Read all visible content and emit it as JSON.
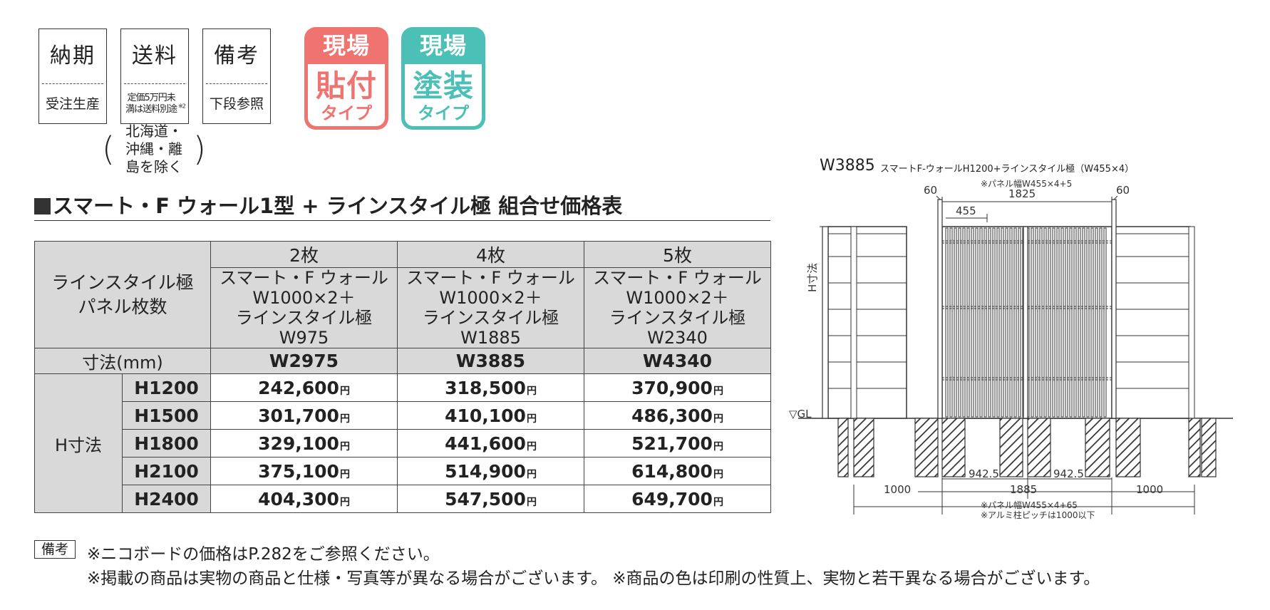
{
  "info_boxes": [
    {
      "title": "納期",
      "value": "受注生産"
    },
    {
      "title": "送料",
      "value": "定価5万円未満は送料別途",
      "sup": "※2"
    },
    {
      "title": "備考",
      "value": "下段参照"
    }
  ],
  "shipping_note": "北海道・沖縄・離島を除く",
  "badges": [
    {
      "top": "現場",
      "main": "貼付",
      "sub": "タイプ",
      "color": "#ef7470"
    },
    {
      "top": "現場",
      "main": "塗装",
      "sub": "タイプ",
      "color": "#4cbfb6"
    }
  ],
  "heading": "スマート・F ウォール1型 + ラインスタイル極 組合せ価格表",
  "table": {
    "corner_label": "ラインスタイル極\nパネル枚数",
    "columns": [
      {
        "count": "2枚",
        "combo_line1": "スマート・F ウォール",
        "combo_line2": "W1000×2＋",
        "combo_line3": "ラインスタイル極  W975",
        "size": "W2975"
      },
      {
        "count": "4枚",
        "combo_line1": "スマート・F ウォール",
        "combo_line2": "W1000×2＋",
        "combo_line3": "ラインスタイル極  W1885",
        "size": "W3885"
      },
      {
        "count": "5枚",
        "combo_line1": "スマート・F ウォール",
        "combo_line2": "W1000×2＋",
        "combo_line3": "ラインスタイル極  W2340",
        "size": "W4340"
      }
    ],
    "size_label": "寸法(mm)",
    "height_label": "H寸法",
    "currency": "円",
    "rows": [
      {
        "h": "H1200",
        "prices": [
          "242,600",
          "318,500",
          "370,900"
        ]
      },
      {
        "h": "H1500",
        "prices": [
          "301,700",
          "410,100",
          "486,300"
        ]
      },
      {
        "h": "H1800",
        "prices": [
          "329,100",
          "441,600",
          "521,700"
        ]
      },
      {
        "h": "H2100",
        "prices": [
          "375,100",
          "514,900",
          "614,800"
        ]
      },
      {
        "h": "H2400",
        "prices": [
          "404,300",
          "547,500",
          "649,700"
        ]
      }
    ]
  },
  "remarks": {
    "label": "備考",
    "line1": "※ニコボードの価格はP.282をご参照ください。",
    "line2": "※掲載の商品は実物の商品と仕様・写真等が異なる場合がございます。 ※商品の色は印刷の性質上、実物と若干異なる場合がございます。"
  },
  "diagram": {
    "title": "W3885",
    "subtitle": "スマートF-ウォールH1200+ラインスタイル極（W455×4）",
    "panel_note_top": "※パネル幅W455×4+5",
    "dim_60_left": "60",
    "dim_60_right": "60",
    "dim_1825": "1825",
    "dim_455": "455",
    "h_label": "H寸法",
    "gl_label": "▽GL",
    "dim_942a": "942.5",
    "dim_942b": "942.5",
    "dim_1000_left": "1000",
    "dim_1885": "1885",
    "dim_1000_right": "1000",
    "note_bottom1": "※パネル幅W455×4+65",
    "note_bottom2": "※アルミ柱ピッチは1000以下"
  }
}
